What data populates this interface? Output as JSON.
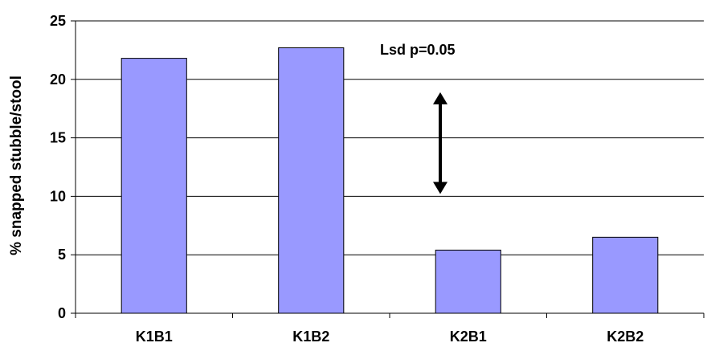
{
  "chart_data": {
    "type": "bar",
    "title": "",
    "xlabel": "",
    "ylabel": "% snapped stubble/stool",
    "categories": [
      "K1B1",
      "K1B2",
      "K2B1",
      "K2B2"
    ],
    "values": [
      21.8,
      22.7,
      5.4,
      6.5
    ],
    "ylim": [
      0,
      25
    ],
    "yticks": [
      0,
      5,
      10,
      15,
      20,
      25
    ],
    "grid": true,
    "legend": "none",
    "annotation": {
      "text": "Lsd p=0.05",
      "arrow_from": 10.2,
      "arrow_to": 18.9
    },
    "colors": {
      "bar_fill": "#9999ff",
      "bar_stroke": "#000000",
      "grid": "#000000",
      "background": "#ffffff"
    }
  }
}
